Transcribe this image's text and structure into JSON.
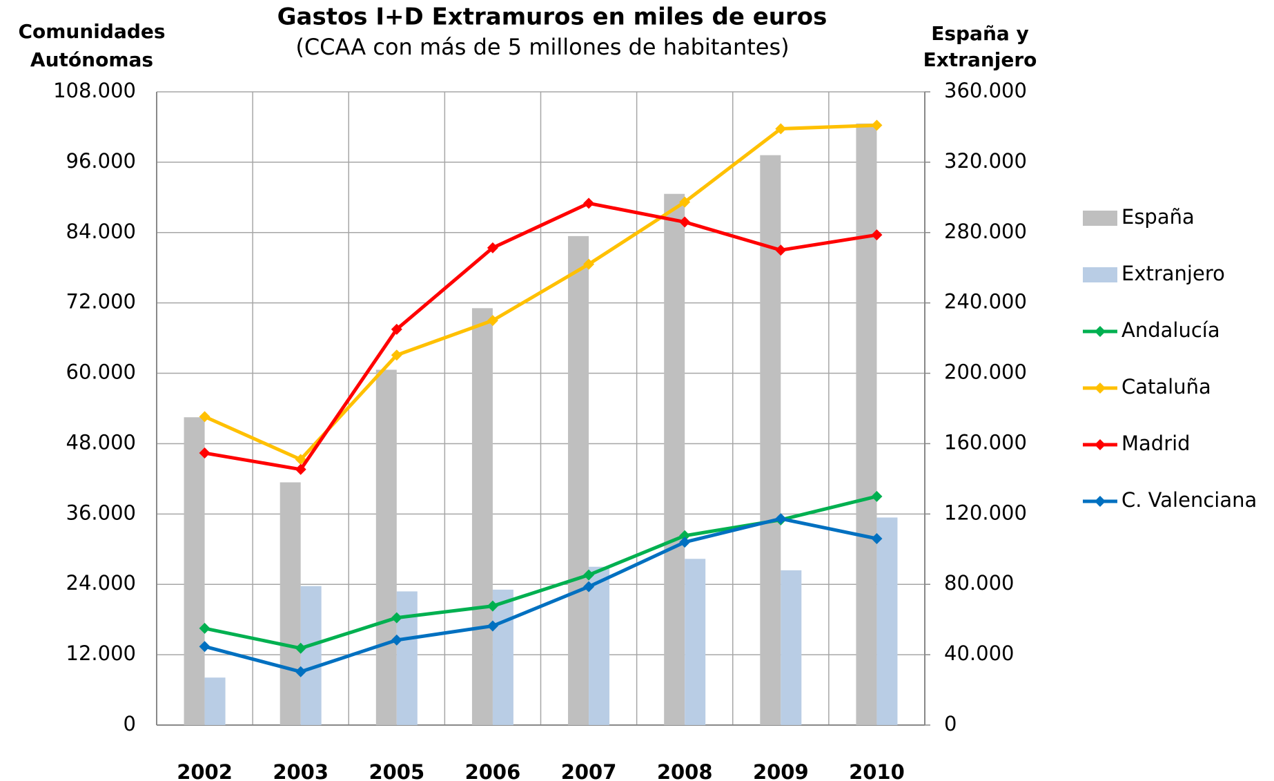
{
  "chart_data": {
    "type": "bar_line",
    "title": "Gastos I+D Extramuros en miles de euros",
    "subtitle": "(CCAA con más de 5 millones de habitantes)",
    "y_label": [
      "Comunidades",
      "Autónomas"
    ],
    "y2_label": [
      "España y",
      "Extranjero"
    ],
    "categories": [
      "2002",
      "2003",
      "2005",
      "2006",
      "2007",
      "2008",
      "2009",
      "2010"
    ],
    "ylim": [
      0,
      108000
    ],
    "yticks": [
      0,
      {
        "value": 12000,
        "label": "12.000"
      },
      {
        "value": 24000,
        "label": "24.000"
      },
      {
        "value": 36000,
        "label": "36.000"
      },
      {
        "value": 48000,
        "label": "48.000"
      },
      {
        "value": 60000,
        "label": "60.000"
      },
      {
        "value": 72000,
        "label": "72.000"
      },
      {
        "value": 84000,
        "label": "84.000"
      },
      {
        "value": 96000,
        "label": "96.000"
      },
      {
        "value": 108000,
        "label": "108.000"
      }
    ],
    "y2lim": [
      0,
      360000
    ],
    "y2ticks": [
      0,
      {
        "value": 40000,
        "label": "40.000"
      },
      {
        "value": 80000,
        "label": "80.000"
      },
      {
        "value": 120000,
        "label": "120.000"
      },
      {
        "value": 160000,
        "label": "160.000"
      },
      {
        "value": 200000,
        "label": "200.000"
      },
      {
        "value": 240000,
        "label": "240.000"
      },
      {
        "value": 280000,
        "label": "280.000"
      },
      {
        "value": 320000,
        "label": "320.000"
      },
      {
        "value": 360000,
        "label": "360.000"
      }
    ],
    "grid": true,
    "legend": "right",
    "series": [
      {
        "name": "España",
        "type": "bar",
        "axis": "y2",
        "color": "#bfbfbf",
        "values": [
          175000,
          138000,
          202000,
          237000,
          278000,
          302000,
          324000,
          342000
        ]
      },
      {
        "name": "Extranjero",
        "type": "bar",
        "axis": "y2",
        "color": "#b9cde5",
        "values": [
          27000,
          79000,
          76000,
          77000,
          90000,
          94500,
          88000,
          118000
        ]
      },
      {
        "name": "Andalucía",
        "type": "line",
        "color": "#00b050",
        "values": [
          16500,
          13100,
          18300,
          20300,
          25600,
          32300,
          35000,
          39000
        ]
      },
      {
        "name": "Cataluña",
        "type": "line",
        "color": "#ffc000",
        "values": [
          52600,
          45300,
          63100,
          69000,
          78600,
          89200,
          101700,
          102300
        ]
      },
      {
        "name": "Madrid",
        "type": "line",
        "color": "#ff0000",
        "values": [
          46400,
          43600,
          67500,
          81400,
          89000,
          85800,
          81000,
          83600
        ]
      },
      {
        "name": "C. Valenciana",
        "type": "line",
        "color": "#0070c0",
        "values": [
          13400,
          9100,
          14500,
          16900,
          23600,
          31200,
          35200,
          31800
        ]
      }
    ]
  }
}
